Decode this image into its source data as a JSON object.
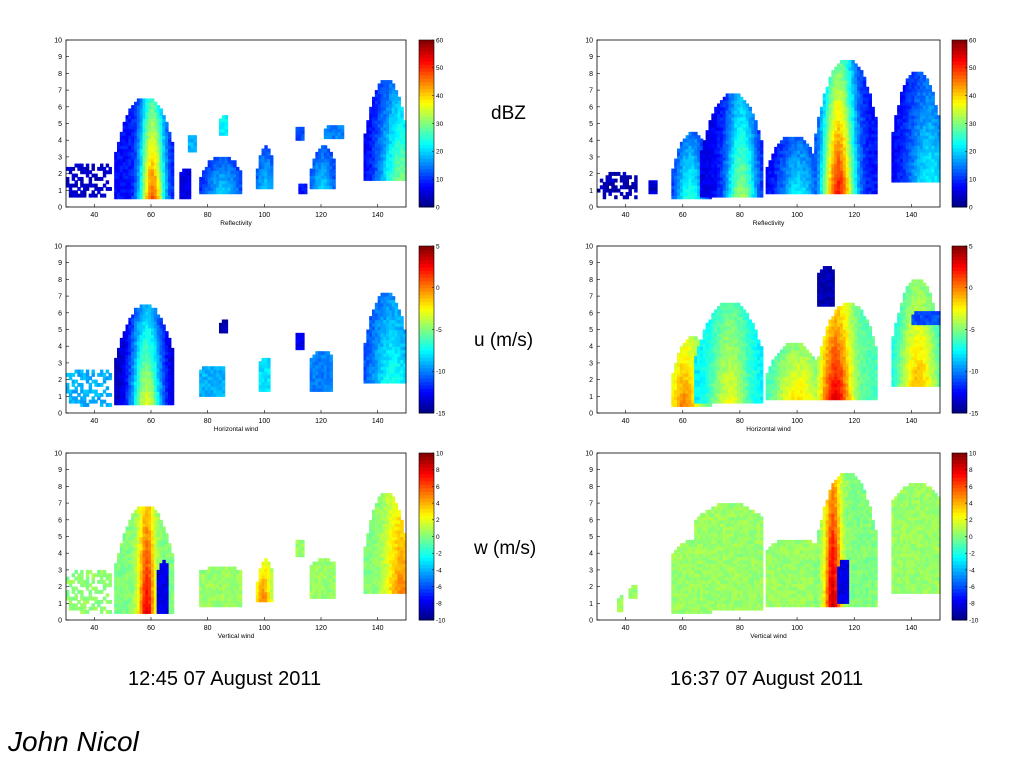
{
  "labels": {
    "dbz": "dBZ",
    "u": "u (m/s)",
    "w": "w (m/s)",
    "time_left": "12:45   07 August 2011",
    "time_right": "16:37   07 August 2011",
    "author": "John Nicol"
  },
  "colormap": "jet",
  "chart_data": [
    {
      "type": "heatmap",
      "panel": "reflectivity-1245",
      "xlabel": "Reflectivity",
      "xlim": [
        30,
        150
      ],
      "ylim": [
        0,
        10
      ],
      "xticks": [
        40,
        60,
        80,
        100,
        120,
        140
      ],
      "yticks": [
        0,
        1,
        2,
        3,
        4,
        5,
        6,
        7,
        8,
        9,
        10
      ],
      "colorbar": {
        "min": 0,
        "max": 60,
        "ticks": [
          0,
          10,
          20,
          30,
          40,
          50,
          60
        ]
      },
      "regions": [
        {
          "x": [
            30,
            46
          ],
          "top": 2.6,
          "bottom": 0.6,
          "value": 4,
          "sparse": true
        },
        {
          "x": [
            47,
            68
          ],
          "top": 6.5,
          "bottom": 0.5,
          "peak_x": 60,
          "peak": 48,
          "edge": 8,
          "core": 3
        },
        {
          "x": [
            70,
            74
          ],
          "top": 2.3,
          "bottom": 0.5,
          "value": 6
        },
        {
          "x": [
            73,
            76
          ],
          "top": 4.3,
          "bottom": 3.3,
          "value": 18
        },
        {
          "x": [
            77,
            92
          ],
          "top": 3.0,
          "bottom": 0.8,
          "peak_x": 85,
          "peak": 20,
          "edge": 6,
          "core": 5
        },
        {
          "x": [
            84,
            87
          ],
          "top": 5.4,
          "bottom": 4.3,
          "value": 22
        },
        {
          "x": [
            97,
            103
          ],
          "top": 3.6,
          "bottom": 1.1,
          "peak_x": 100,
          "peak": 20,
          "edge": 6,
          "core": 3
        },
        {
          "x": [
            111,
            114
          ],
          "top": 4.8,
          "bottom": 4.0,
          "value": 12
        },
        {
          "x": [
            112,
            115
          ],
          "top": 1.3,
          "bottom": 0.8,
          "value": 8
        },
        {
          "x": [
            116,
            125
          ],
          "top": 3.6,
          "bottom": 1.1,
          "peak_x": 120,
          "peak": 20,
          "edge": 6,
          "core": 4
        },
        {
          "x": [
            121,
            128
          ],
          "top": 4.8,
          "bottom": 4.1,
          "value": 15
        },
        {
          "x": [
            135,
            150
          ],
          "top": 7.6,
          "bottom": 1.6,
          "peak_x": 148,
          "peak": 30,
          "edge": 5,
          "core": 6
        }
      ]
    },
    {
      "type": "heatmap",
      "panel": "horizontal-wind-1245",
      "xlabel": "Horizontal wind",
      "xlim": [
        30,
        150
      ],
      "ylim": [
        0,
        10
      ],
      "xticks": [
        40,
        60,
        80,
        100,
        120,
        140
      ],
      "yticks": [
        0,
        1,
        2,
        3,
        4,
        5,
        6,
        7,
        8,
        9,
        10
      ],
      "colorbar": {
        "min": -15,
        "max": 5,
        "ticks": [
          -15,
          -10,
          -5,
          0,
          5
        ]
      },
      "regions": [
        {
          "x": [
            30,
            46
          ],
          "top": 2.6,
          "bottom": 0.4,
          "value": -9,
          "sparse": true
        },
        {
          "x": [
            47,
            68
          ],
          "top": 6.4,
          "bottom": 0.5,
          "peak_x": 58,
          "peak": -3,
          "edge": -14,
          "core": 4
        },
        {
          "x": [
            77,
            86
          ],
          "top": 2.8,
          "bottom": 1.0,
          "value": -9
        },
        {
          "x": [
            84,
            87
          ],
          "top": 5.5,
          "bottom": 4.8,
          "value": -14
        },
        {
          "x": [
            98,
            102
          ],
          "top": 3.3,
          "bottom": 1.3,
          "value": -8
        },
        {
          "x": [
            111,
            114
          ],
          "top": 4.8,
          "bottom": 3.8,
          "value": -13
        },
        {
          "x": [
            116,
            124
          ],
          "top": 3.6,
          "bottom": 1.3,
          "value": -10
        },
        {
          "x": [
            135,
            150
          ],
          "top": 7.1,
          "bottom": 1.8,
          "peak_x": 145,
          "peak": -7,
          "edge": -12,
          "core": 6
        }
      ]
    },
    {
      "type": "heatmap",
      "panel": "vertical-wind-1245",
      "xlabel": "Vertical wind",
      "xlim": [
        30,
        150
      ],
      "ylim": [
        0,
        10
      ],
      "xticks": [
        40,
        60,
        80,
        100,
        120,
        140
      ],
      "yticks": [
        0,
        1,
        2,
        3,
        4,
        5,
        6,
        7,
        8,
        9,
        10
      ],
      "colorbar": {
        "min": -10,
        "max": 10,
        "ticks": [
          -10,
          -8,
          -6,
          -4,
          -2,
          0,
          2,
          4,
          6,
          8,
          10
        ]
      },
      "regions": [
        {
          "x": [
            30,
            46
          ],
          "top": 3.0,
          "bottom": 0.4,
          "value": 0.3,
          "sparse": true
        },
        {
          "x": [
            47,
            68
          ],
          "top": 6.8,
          "bottom": 0.4,
          "peak_x": 58,
          "peak": 8,
          "edge": 0,
          "core": 2
        },
        {
          "x": [
            62,
            66
          ],
          "top": 3.5,
          "bottom": 0.4,
          "value": -8
        },
        {
          "x": [
            77,
            92
          ],
          "top": 3.2,
          "bottom": 0.8,
          "value": 0.5
        },
        {
          "x": [
            97,
            103
          ],
          "top": 3.6,
          "bottom": 1.1,
          "peak_x": 99,
          "peak": 5,
          "edge": 0,
          "core": 2
        },
        {
          "x": [
            111,
            114
          ],
          "top": 4.8,
          "bottom": 3.8,
          "value": 0.5
        },
        {
          "x": [
            116,
            125
          ],
          "top": 3.6,
          "bottom": 1.3,
          "value": 0.5
        },
        {
          "x": [
            135,
            150
          ],
          "top": 7.6,
          "bottom": 1.6,
          "peak_x": 148,
          "peak": 5,
          "edge": 0,
          "core": 4
        }
      ]
    },
    {
      "type": "heatmap",
      "panel": "reflectivity-1637",
      "xlabel": "Reflectivity",
      "xlim": [
        30,
        150
      ],
      "ylim": [
        0,
        10
      ],
      "xticks": [
        40,
        60,
        80,
        100,
        120,
        140
      ],
      "yticks": [
        0,
        1,
        2,
        3,
        4,
        5,
        6,
        7,
        8,
        9,
        10
      ],
      "colorbar": {
        "min": 0,
        "max": 60,
        "ticks": [
          0,
          10,
          20,
          30,
          40,
          50,
          60
        ]
      },
      "regions": [
        {
          "x": [
            30,
            44
          ],
          "top": 2.0,
          "bottom": 0.5,
          "value": 3,
          "sparse": true
        },
        {
          "x": [
            48,
            51
          ],
          "top": 1.6,
          "bottom": 0.8,
          "value": 4
        },
        {
          "x": [
            56,
            70
          ],
          "top": 4.4,
          "bottom": 0.5,
          "peak_x": 62,
          "peak": 25,
          "edge": 6,
          "core": 4
        },
        {
          "x": [
            66,
            88
          ],
          "top": 6.7,
          "bottom": 0.6,
          "peak_x": 80,
          "peak": 32,
          "edge": 6,
          "core": 4
        },
        {
          "x": [
            89,
            107
          ],
          "top": 4.2,
          "bottom": 0.8,
          "peak_x": 100,
          "peak": 22,
          "edge": 6,
          "core": 5
        },
        {
          "x": [
            106,
            128
          ],
          "top": 8.8,
          "bottom": 0.8,
          "peak_x": 114,
          "peak": 52,
          "edge": 8,
          "core": 4
        },
        {
          "x": [
            133,
            150
          ],
          "top": 8.1,
          "bottom": 1.5,
          "peak_x": 146,
          "peak": 22,
          "edge": 6,
          "core": 6
        }
      ]
    },
    {
      "type": "heatmap",
      "panel": "horizontal-wind-1637",
      "xlabel": "Horizontal wind",
      "xlim": [
        30,
        150
      ],
      "ylim": [
        0,
        10
      ],
      "xticks": [
        40,
        60,
        80,
        100,
        120,
        140
      ],
      "yticks": [
        0,
        1,
        2,
        3,
        4,
        5,
        6,
        7,
        8,
        9,
        10
      ],
      "colorbar": {
        "min": -15,
        "max": 5,
        "ticks": [
          -15,
          -10,
          -5,
          0,
          5
        ]
      },
      "regions": [
        {
          "x": [
            56,
            70
          ],
          "top": 4.5,
          "bottom": 0.4,
          "peak_x": 60,
          "peak": 0,
          "edge": -6,
          "core": 4
        },
        {
          "x": [
            64,
            88
          ],
          "top": 6.6,
          "bottom": 0.6,
          "peak_x": 76,
          "peak": -3,
          "edge": -8,
          "core": 5
        },
        {
          "x": [
            89,
            108
          ],
          "top": 4.1,
          "bottom": 0.8,
          "peak_x": 100,
          "peak": -2,
          "edge": -7,
          "core": 6
        },
        {
          "x": [
            107,
            128
          ],
          "top": 6.5,
          "bottom": 0.8,
          "peak_x": 113,
          "peak": 3,
          "edge": -6,
          "core": 4
        },
        {
          "x": [
            107,
            113
          ],
          "top": 8.7,
          "bottom": 6.4,
          "value": -14
        },
        {
          "x": [
            133,
            150
          ],
          "top": 7.9,
          "bottom": 1.6,
          "peak_x": 142,
          "peak": -1,
          "edge": -8,
          "core": 5
        },
        {
          "x": [
            140,
            150
          ],
          "top": 6.0,
          "bottom": 5.3,
          "value": -11
        }
      ]
    },
    {
      "type": "heatmap",
      "panel": "vertical-wind-1637",
      "xlabel": "Vertical wind",
      "xlim": [
        30,
        150
      ],
      "ylim": [
        0,
        10
      ],
      "xticks": [
        40,
        60,
        80,
        100,
        120,
        140
      ],
      "yticks": [
        0,
        1,
        2,
        3,
        4,
        5,
        6,
        7,
        8,
        9,
        10
      ],
      "colorbar": {
        "min": -10,
        "max": 10,
        "ticks": [
          -10,
          -8,
          -6,
          -4,
          -2,
          0,
          2,
          4,
          6,
          8,
          10
        ]
      },
      "regions": [
        {
          "x": [
            37,
            39
          ],
          "top": 1.3,
          "bottom": 0.5,
          "value": 0.5
        },
        {
          "x": [
            41,
            44
          ],
          "top": 2.0,
          "bottom": 1.3,
          "value": 0.5
        },
        {
          "x": [
            56,
            70
          ],
          "top": 4.7,
          "bottom": 0.4,
          "value": 0.5
        },
        {
          "x": [
            64,
            88
          ],
          "top": 6.9,
          "bottom": 0.6,
          "value": 0.5
        },
        {
          "x": [
            89,
            108
          ],
          "top": 4.8,
          "bottom": 0.8,
          "value": 0.5
        },
        {
          "x": [
            106,
            128
          ],
          "top": 8.8,
          "bottom": 0.8,
          "peak_x": 112,
          "peak": 9,
          "edge": 0,
          "core": 2
        },
        {
          "x": [
            114,
            118
          ],
          "top": 3.5,
          "bottom": 1.0,
          "value": -8
        },
        {
          "x": [
            133,
            150
          ],
          "top": 8.1,
          "bottom": 1.6,
          "value": 0.5
        }
      ]
    }
  ]
}
